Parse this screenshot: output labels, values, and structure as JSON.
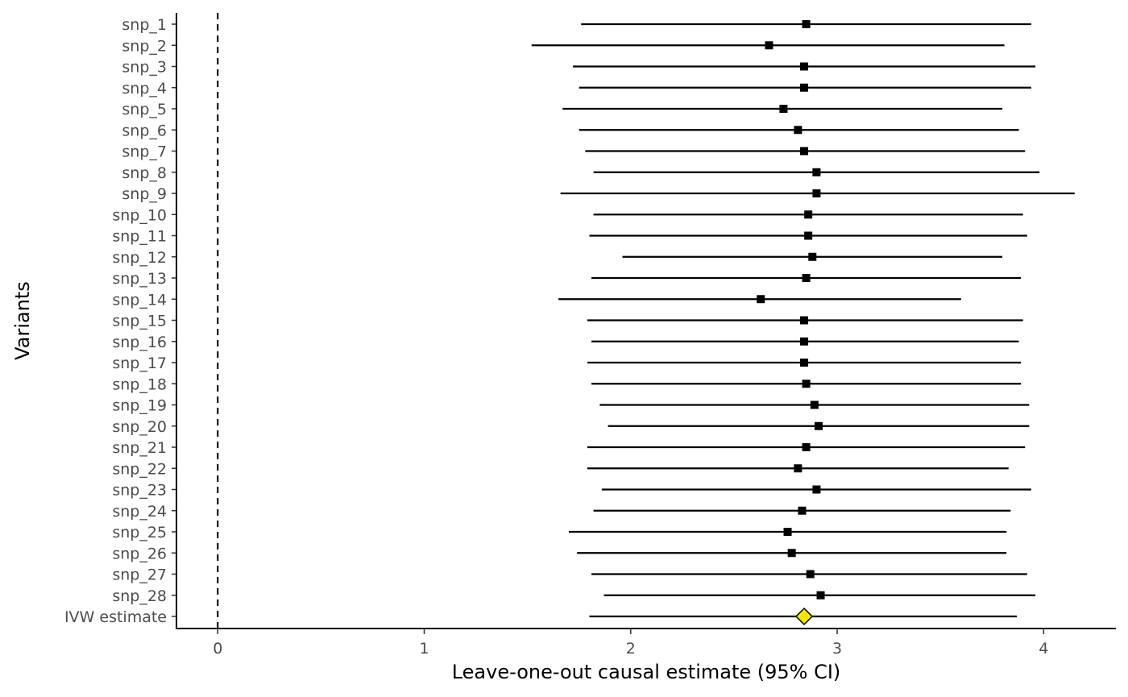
{
  "chart_data": {
    "type": "scatter",
    "title": "",
    "xlabel": "Leave-one-out causal estimate (95% CI)",
    "ylabel": "Variants",
    "xlim": [
      -0.2,
      4.35
    ],
    "xticks": [
      0,
      1,
      2,
      3,
      4
    ],
    "reference_line": {
      "x": 0,
      "style": "dashed"
    },
    "grid": false,
    "legend": "none",
    "colors": {
      "point": "#000000",
      "estimate_fill": "#f2e600",
      "line": "#000000"
    },
    "rows": [
      {
        "label": "snp_1",
        "estimate": 2.85,
        "lower": 1.76,
        "upper": 3.94
      },
      {
        "label": "snp_2",
        "estimate": 2.67,
        "lower": 1.52,
        "upper": 3.81
      },
      {
        "label": "snp_3",
        "estimate": 2.84,
        "lower": 1.72,
        "upper": 3.96
      },
      {
        "label": "snp_4",
        "estimate": 2.84,
        "lower": 1.75,
        "upper": 3.94
      },
      {
        "label": "snp_5",
        "estimate": 2.74,
        "lower": 1.67,
        "upper": 3.8
      },
      {
        "label": "snp_6",
        "estimate": 2.81,
        "lower": 1.75,
        "upper": 3.88
      },
      {
        "label": "snp_7",
        "estimate": 2.84,
        "lower": 1.78,
        "upper": 3.91
      },
      {
        "label": "snp_8",
        "estimate": 2.9,
        "lower": 1.82,
        "upper": 3.98
      },
      {
        "label": "snp_9",
        "estimate": 2.9,
        "lower": 1.66,
        "upper": 4.15
      },
      {
        "label": "snp_10",
        "estimate": 2.86,
        "lower": 1.82,
        "upper": 3.9
      },
      {
        "label": "snp_11",
        "estimate": 2.86,
        "lower": 1.8,
        "upper": 3.92
      },
      {
        "label": "snp_12",
        "estimate": 2.88,
        "lower": 1.96,
        "upper": 3.8
      },
      {
        "label": "snp_13",
        "estimate": 2.85,
        "lower": 1.81,
        "upper": 3.89
      },
      {
        "label": "snp_14",
        "estimate": 2.63,
        "lower": 1.65,
        "upper": 3.6
      },
      {
        "label": "snp_15",
        "estimate": 2.84,
        "lower": 1.79,
        "upper": 3.9
      },
      {
        "label": "snp_16",
        "estimate": 2.84,
        "lower": 1.81,
        "upper": 3.88
      },
      {
        "label": "snp_17",
        "estimate": 2.84,
        "lower": 1.79,
        "upper": 3.89
      },
      {
        "label": "snp_18",
        "estimate": 2.85,
        "lower": 1.81,
        "upper": 3.89
      },
      {
        "label": "snp_19",
        "estimate": 2.89,
        "lower": 1.85,
        "upper": 3.93
      },
      {
        "label": "snp_20",
        "estimate": 2.91,
        "lower": 1.89,
        "upper": 3.93
      },
      {
        "label": "snp_21",
        "estimate": 2.85,
        "lower": 1.79,
        "upper": 3.91
      },
      {
        "label": "snp_22",
        "estimate": 2.81,
        "lower": 1.79,
        "upper": 3.83
      },
      {
        "label": "snp_23",
        "estimate": 2.9,
        "lower": 1.86,
        "upper": 3.94
      },
      {
        "label": "snp_24",
        "estimate": 2.83,
        "lower": 1.82,
        "upper": 3.84
      },
      {
        "label": "snp_25",
        "estimate": 2.76,
        "lower": 1.7,
        "upper": 3.82
      },
      {
        "label": "snp_26",
        "estimate": 2.78,
        "lower": 1.74,
        "upper": 3.82
      },
      {
        "label": "snp_27",
        "estimate": 2.87,
        "lower": 1.81,
        "upper": 3.92
      },
      {
        "label": "snp_28",
        "estimate": 2.92,
        "lower": 1.87,
        "upper": 3.96
      },
      {
        "label": "IVW estimate",
        "estimate": 2.84,
        "lower": 1.8,
        "upper": 3.87,
        "summary": true
      }
    ]
  }
}
